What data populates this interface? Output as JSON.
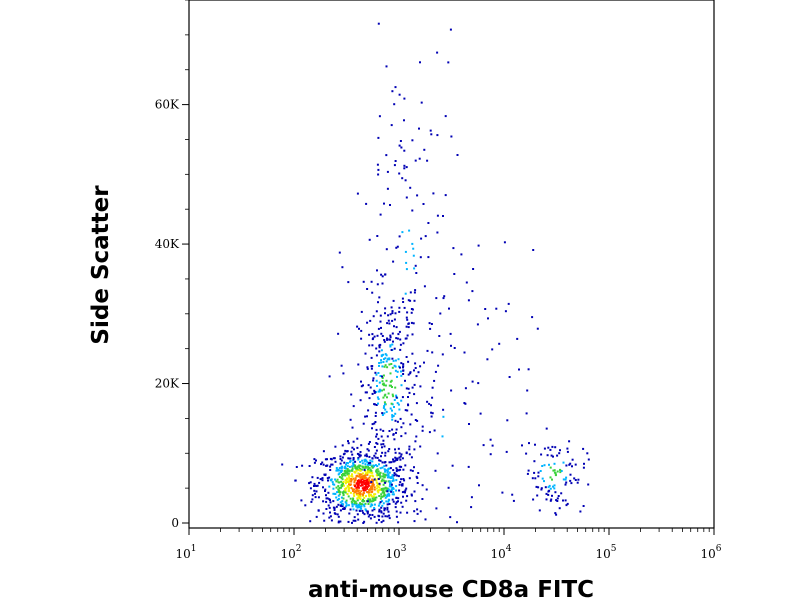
{
  "chart_data": {
    "type": "scatter",
    "title": "",
    "xlabel": "anti-mouse CD8a FITC",
    "ylabel": "Side Scatter",
    "x_scale": "log",
    "xlim": [
      10,
      1000000
    ],
    "ylim": [
      0,
      75000
    ],
    "grid": false,
    "legend": "none",
    "density_colors": [
      "#0000b4",
      "#00b4ff",
      "#3ad23a",
      "#f0f000",
      "#ff8000",
      "#ff0000"
    ],
    "x_ticks": [
      {
        "base": "10",
        "exp": "1",
        "value": 10
      },
      {
        "base": "10",
        "exp": "2",
        "value": 100
      },
      {
        "base": "10",
        "exp": "3",
        "value": 1000
      },
      {
        "base": "10",
        "exp": "4",
        "value": 10000
      },
      {
        "base": "10",
        "exp": "5",
        "value": 100000
      },
      {
        "base": "10",
        "exp": "6",
        "value": 1000000
      }
    ],
    "y_ticks": [
      {
        "label": "0",
        "value": 0
      },
      {
        "label": "20K",
        "value": 20000
      },
      {
        "label": "40K",
        "value": 40000
      },
      {
        "label": "60K",
        "value": 60000
      }
    ],
    "populations": [
      {
        "center_x": 450,
        "center_y": 5500,
        "sd_log10_x": 0.22,
        "sd_y": 2500,
        "count": 900,
        "density": "high"
      },
      {
        "center_x": 800,
        "center_y": 20000,
        "sd_log10_x": 0.15,
        "sd_y": 6500,
        "count": 320,
        "density": "medium"
      },
      {
        "center_x": 1200,
        "center_y": 38000,
        "sd_log10_x": 0.25,
        "sd_y": 18000,
        "count": 160,
        "density": "low"
      },
      {
        "center_x": 30000,
        "center_y": 7000,
        "sd_log10_x": 0.15,
        "sd_y": 2500,
        "count": 110,
        "density": "medium"
      },
      {
        "center_x": 3000,
        "center_y": 15000,
        "sd_log10_x": 0.4,
        "sd_y": 12000,
        "count": 80,
        "density": "low"
      }
    ]
  }
}
